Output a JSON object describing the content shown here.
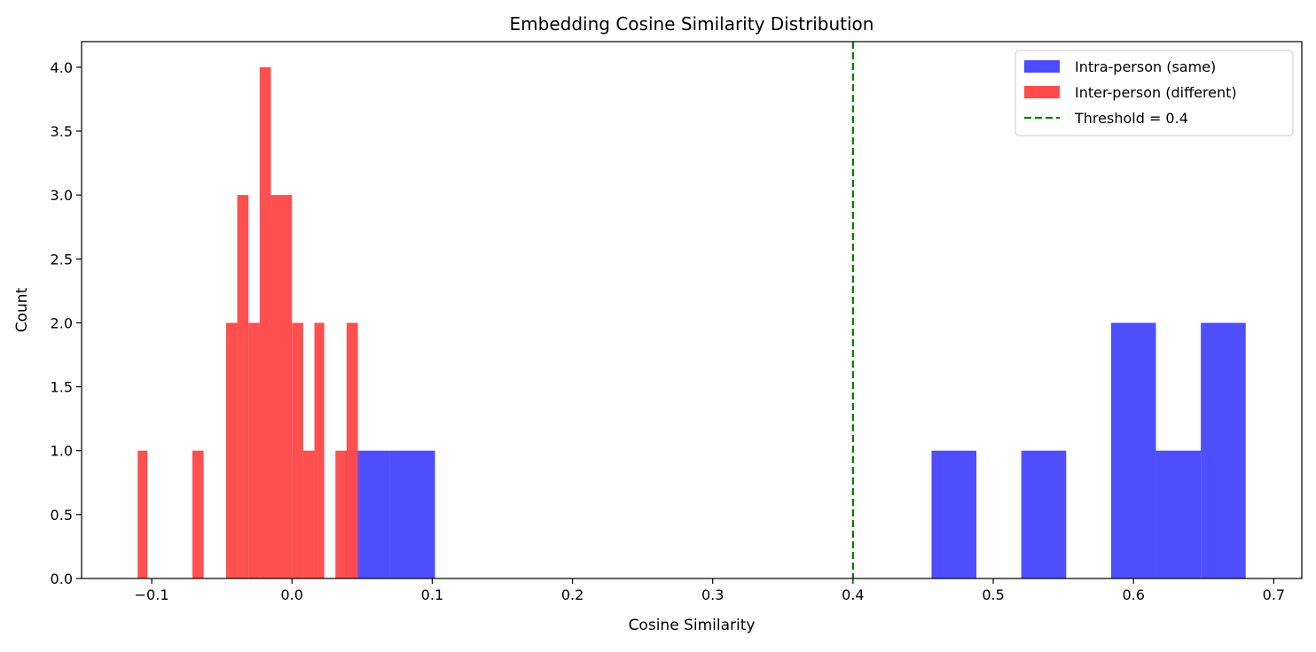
{
  "chart_data": {
    "type": "bar",
    "title": "Embedding Cosine Similarity Distribution",
    "xlabel": "Cosine Similarity",
    "ylabel": "Count",
    "xlim": [
      -0.15,
      0.72
    ],
    "ylim": [
      0,
      4.2
    ],
    "xticks": [
      -0.1,
      0.0,
      0.1,
      0.2,
      0.3,
      0.4,
      0.5,
      0.6,
      0.7
    ],
    "xtick_labels": [
      "−0.1",
      "0.0",
      "0.1",
      "0.2",
      "0.3",
      "0.4",
      "0.5",
      "0.6",
      "0.7"
    ],
    "yticks": [
      0,
      0.5,
      1.0,
      1.5,
      2.0,
      2.5,
      3.0,
      3.5,
      4.0
    ],
    "ytick_labels": [
      "0.0",
      "0.5",
      "1.0",
      "1.5",
      "2.0",
      "2.5",
      "3.0",
      "3.5",
      "4.0"
    ],
    "grid": false,
    "legend_position": "top-right",
    "series": [
      {
        "name": "Intra-person (same)",
        "color": "#4b4bff",
        "bins": [
          {
            "x0": 0.038,
            "x1": 0.07,
            "count": 1
          },
          {
            "x0": 0.07,
            "x1": 0.102,
            "count": 1
          },
          {
            "x0": 0.456,
            "x1": 0.488,
            "count": 1
          },
          {
            "x0": 0.52,
            "x1": 0.552,
            "count": 1
          },
          {
            "x0": 0.584,
            "x1": 0.616,
            "count": 2
          },
          {
            "x0": 0.616,
            "x1": 0.648,
            "count": 1
          },
          {
            "x0": 0.648,
            "x1": 0.68,
            "count": 2
          }
        ]
      },
      {
        "name": "Inter-person (different)",
        "color": "#ff4b4b",
        "bins": [
          {
            "x0": -0.11,
            "x1": -0.103,
            "count": 1
          },
          {
            "x0": -0.071,
            "x1": -0.063,
            "count": 1
          },
          {
            "x0": -0.047,
            "x1": -0.039,
            "count": 2
          },
          {
            "x0": -0.039,
            "x1": -0.031,
            "count": 3
          },
          {
            "x0": -0.031,
            "x1": -0.023,
            "count": 2
          },
          {
            "x0": -0.023,
            "x1": -0.015,
            "count": 4
          },
          {
            "x0": -0.015,
            "x1": 0.0,
            "count": 3
          },
          {
            "x0": 0.0,
            "x1": 0.008,
            "count": 2
          },
          {
            "x0": 0.008,
            "x1": 0.016,
            "count": 1
          },
          {
            "x0": 0.016,
            "x1": 0.023,
            "count": 2
          },
          {
            "x0": 0.031,
            "x1": 0.039,
            "count": 1
          },
          {
            "x0": 0.039,
            "x1": 0.047,
            "count": 2
          }
        ]
      }
    ],
    "threshold": {
      "label": "Threshold = 0.4",
      "x": 0.4,
      "color": "#008000",
      "style": "dashed"
    }
  }
}
